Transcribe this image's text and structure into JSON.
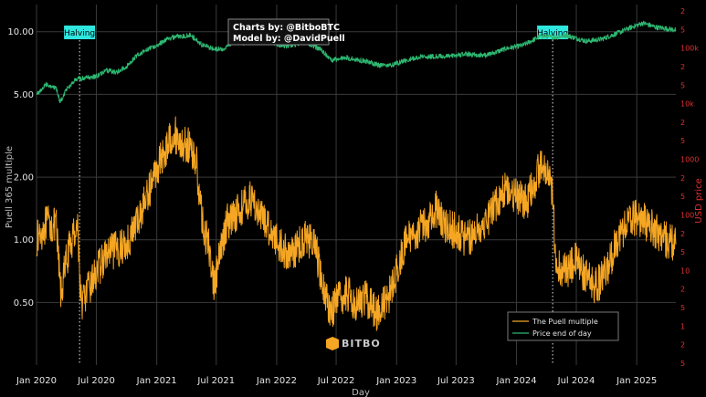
{
  "chart_data": {
    "type": "line",
    "credit": {
      "charts_by": "Charts by: @BitboBTC",
      "model_by": "Model by: @DavidPuell"
    },
    "xlabel": "Day",
    "ylabel_left": "Puell 365 multiple",
    "ylabel_right": "USD price",
    "xlim": [
      "2020-01-01",
      "2025-04-30"
    ],
    "ylim_left": [
      0.25,
      13.5
    ],
    "yscale": "log",
    "x_ticks": [
      "Jan 2020",
      "Jul 2020",
      "Jan 2021",
      "Jul 2021",
      "Jan 2022",
      "Jul 2022",
      "Jan 2023",
      "Jul 2023",
      "Jan 2024",
      "Jul 2024",
      "Jan 2025"
    ],
    "y_ticks_left": [
      "0.50",
      "1.00",
      "2.00",
      "5.00",
      "10.00"
    ],
    "y_ticks_right": [
      "2",
      "5",
      "100k",
      "2",
      "5",
      "10k",
      "2",
      "5",
      "1000",
      "2",
      "5",
      "100",
      "2",
      "5",
      "10",
      "2",
      "5",
      "1",
      "2",
      "5"
    ],
    "halvings": [
      {
        "date": "2020-05-11",
        "label": "Halving"
      },
      {
        "date": "2024-04-20",
        "label": "Halving"
      }
    ],
    "grid": true,
    "legend_position": "bottom-right",
    "colors": {
      "puell": "#f5a623",
      "price": "#2eb872",
      "halving_box": "#2ee8e0",
      "right_axis": "#e03030"
    },
    "series": [
      {
        "name": "The Puell multiple",
        "axis": "left",
        "x": [
          "2020-01-01",
          "2020-02-01",
          "2020-03-01",
          "2020-03-15",
          "2020-04-01",
          "2020-04-25",
          "2020-05-05",
          "2020-05-15",
          "2020-06-01",
          "2020-07-01",
          "2020-08-01",
          "2020-09-01",
          "2020-10-01",
          "2020-11-01",
          "2020-12-01",
          "2021-01-01",
          "2021-02-01",
          "2021-02-20",
          "2021-03-15",
          "2021-04-10",
          "2021-05-01",
          "2021-05-20",
          "2021-06-10",
          "2021-06-25",
          "2021-07-10",
          "2021-08-01",
          "2021-08-20",
          "2021-09-10",
          "2021-10-01",
          "2021-10-20",
          "2021-11-10",
          "2021-12-01",
          "2022-01-01",
          "2022-02-01",
          "2022-03-01",
          "2022-04-01",
          "2022-05-01",
          "2022-05-20",
          "2022-06-15",
          "2022-07-01",
          "2022-08-01",
          "2022-09-01",
          "2022-10-01",
          "2022-11-01",
          "2022-12-01",
          "2023-01-01",
          "2023-02-01",
          "2023-03-01",
          "2023-04-01",
          "2023-05-01",
          "2023-06-01",
          "2023-07-01",
          "2023-08-01",
          "2023-09-01",
          "2023-10-01",
          "2023-11-01",
          "2023-12-01",
          "2024-01-01",
          "2024-02-01",
          "2024-03-01",
          "2024-03-15",
          "2024-04-10",
          "2024-04-20",
          "2024-05-01",
          "2024-06-01",
          "2024-07-01",
          "2024-08-01",
          "2024-09-01",
          "2024-10-01",
          "2024-11-01",
          "2024-12-01",
          "2025-01-01",
          "2025-02-01",
          "2025-03-01",
          "2025-04-01",
          "2025-04-30"
        ],
        "values": [
          1.0,
          1.2,
          1.15,
          0.55,
          0.8,
          1.1,
          1.2,
          0.5,
          0.55,
          0.7,
          0.85,
          0.9,
          0.95,
          1.2,
          1.6,
          2.2,
          2.8,
          3.3,
          2.9,
          2.8,
          2.4,
          1.2,
          0.9,
          0.6,
          0.8,
          1.2,
          1.3,
          1.4,
          1.5,
          1.6,
          1.3,
          1.2,
          1.0,
          0.85,
          0.9,
          1.05,
          0.9,
          0.6,
          0.45,
          0.5,
          0.55,
          0.5,
          0.52,
          0.45,
          0.5,
          0.7,
          1.0,
          1.1,
          1.2,
          1.4,
          1.15,
          1.1,
          1.0,
          1.1,
          1.25,
          1.5,
          1.8,
          1.6,
          1.5,
          2.0,
          2.3,
          1.9,
          1.6,
          0.75,
          0.7,
          0.8,
          0.65,
          0.6,
          0.7,
          1.0,
          1.2,
          1.3,
          1.2,
          1.1,
          1.0,
          0.95
        ],
        "noise": 0.09
      },
      {
        "name": "Price end of day",
        "axis": "left",
        "x": [
          "2020-01-01",
          "2020-02-01",
          "2020-03-01",
          "2020-03-13",
          "2020-04-01",
          "2020-05-01",
          "2020-06-01",
          "2020-07-01",
          "2020-08-01",
          "2020-09-01",
          "2020-10-01",
          "2020-11-01",
          "2020-12-01",
          "2021-01-01",
          "2021-02-01",
          "2021-03-01",
          "2021-04-15",
          "2021-05-20",
          "2021-06-20",
          "2021-07-20",
          "2021-08-20",
          "2021-09-20",
          "2021-10-20",
          "2021-11-10",
          "2021-12-15",
          "2022-01-20",
          "2022-03-01",
          "2022-04-01",
          "2022-05-15",
          "2022-06-18",
          "2022-08-01",
          "2022-10-01",
          "2022-11-10",
          "2022-12-15",
          "2023-01-20",
          "2023-03-15",
          "2023-06-01",
          "2023-08-01",
          "2023-10-01",
          "2023-12-01",
          "2024-01-20",
          "2024-03-14",
          "2024-05-01",
          "2024-06-01",
          "2024-08-01",
          "2024-09-15",
          "2024-11-01",
          "2024-12-15",
          "2025-01-20",
          "2025-03-01",
          "2025-04-10",
          "2025-04-30"
        ],
        "values": [
          5.0,
          5.6,
          5.3,
          4.6,
          5.3,
          5.9,
          6.0,
          6.1,
          6.5,
          6.4,
          6.8,
          7.7,
          8.2,
          8.6,
          9.2,
          9.5,
          9.6,
          8.6,
          8.3,
          8.2,
          8.9,
          8.8,
          9.2,
          9.5,
          9.0,
          8.5,
          8.7,
          8.9,
          8.2,
          7.3,
          7.5,
          7.2,
          6.9,
          6.9,
          7.2,
          7.6,
          7.6,
          7.8,
          7.7,
          8.3,
          8.6,
          9.5,
          9.4,
          9.6,
          9.0,
          9.2,
          9.8,
          10.5,
          11.0,
          10.5,
          10.3,
          10.2
        ],
        "noise": 0.02
      }
    ]
  }
}
